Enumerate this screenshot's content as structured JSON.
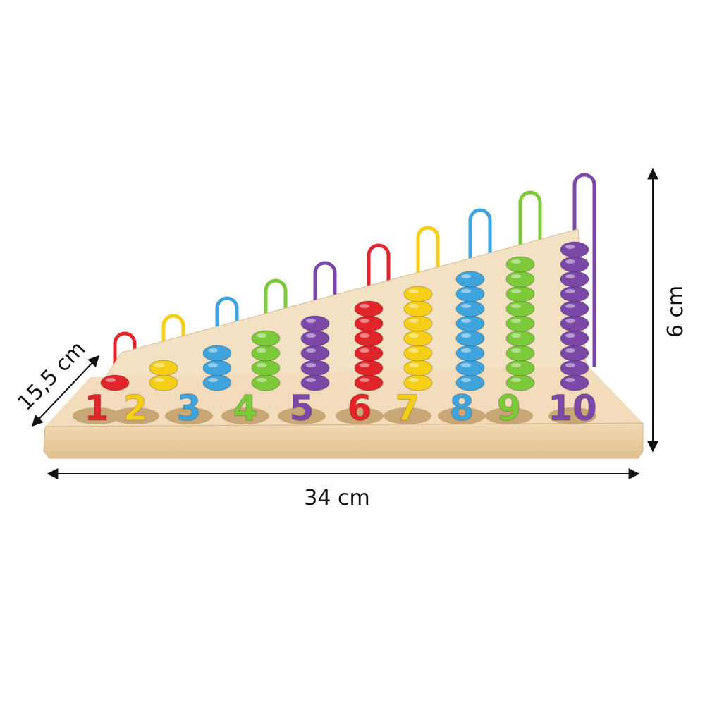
{
  "dimensions": {
    "depth": "15,5 cm",
    "width": "34 cm",
    "height": "6 cm"
  },
  "number_pieces": [
    "1",
    "2",
    "3",
    "4",
    "5",
    "6",
    "7",
    "8",
    "9",
    "10"
  ]
}
